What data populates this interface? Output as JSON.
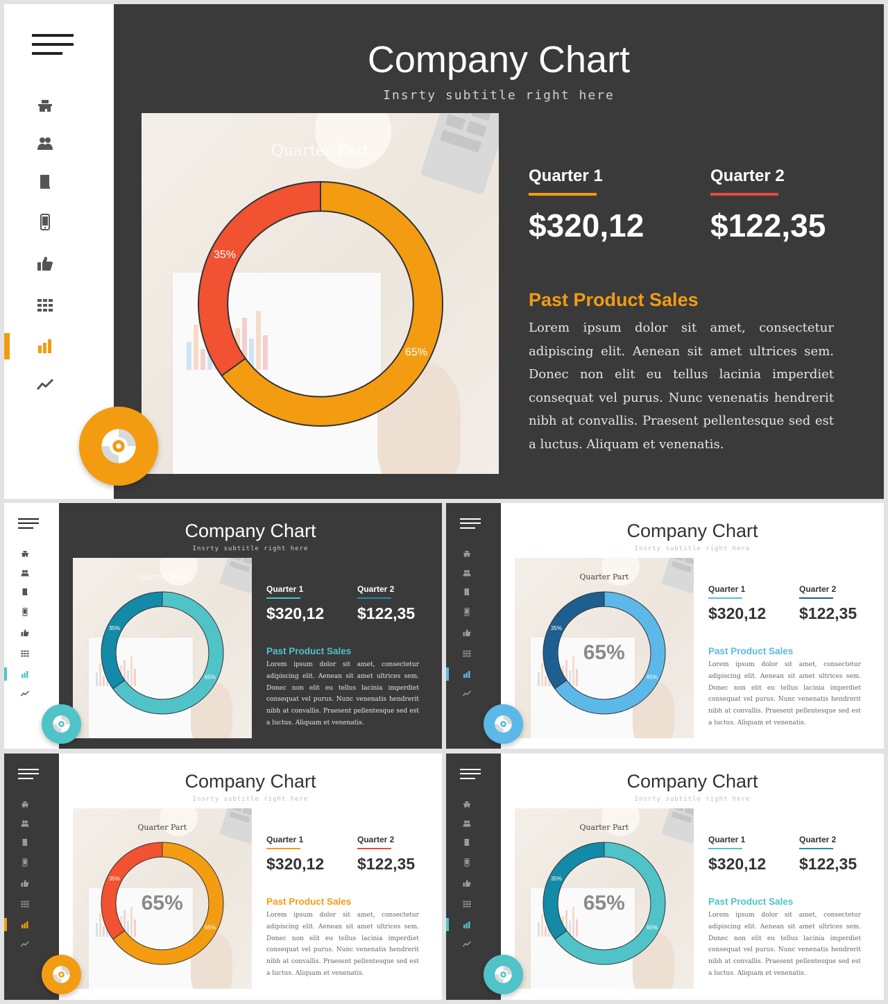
{
  "slides": [
    {
      "id": "big-orange",
      "theme": "dark",
      "accent": "#f39c12",
      "title": "Company Chart",
      "subtitle": "Insrty subtitle right here",
      "chart_title": "Quarter Part",
      "center_label": "",
      "q1": {
        "label": "Quarter 1",
        "value": "$320,12",
        "underline": "#f39c12"
      },
      "q2": {
        "label": "Quarter 2",
        "value": "$122,35",
        "underline": "#e74c3c"
      },
      "section_title": "Past Product Sales",
      "body": "Lorem ipsum dolor sit amet, consectetur adipiscing elit. Aenean sit amet ultrices sem. Donec non elit eu tellus lacinia imperdiet consequat vel purus. Nunc venenatis hendrerit nibh at convallis. Praesent pellentesque sed est a luctus. Aliquam et venenatis.",
      "chart_data": {
        "type": "pie",
        "labels": [
          "35%",
          "65%"
        ],
        "values": [
          35,
          65
        ],
        "colors": [
          "#f05232",
          "#f39c12"
        ],
        "title": "Quarter Part"
      }
    },
    {
      "id": "dark-teal",
      "theme": "dark",
      "accent": "#4fc3c8",
      "title": "Company Chart",
      "subtitle": "Insrty subtitle right here",
      "chart_title": "Quarter Part",
      "center_label": "",
      "q1": {
        "label": "Quarter 1",
        "value": "$320,12",
        "underline": "#4fc3c8"
      },
      "q2": {
        "label": "Quarter 2",
        "value": "$122,35",
        "underline": "#1a8fb0"
      },
      "section_title": "Past Product Sales",
      "body": "Lorem ipsum dolor sit amet, consectetur adipiscing elit. Aenean sit amet ultrices sem. Donec non elit eu tellus lacinia imperdiet consequat vel purus. Nunc venenatis hendrerit nibh at convallis. Praesent pellentesque sed est a luctus. Aliquam et venenatis.",
      "chart_data": {
        "type": "pie",
        "labels": [
          "35%",
          "65%"
        ],
        "values": [
          35,
          65
        ],
        "colors": [
          "#138aa8",
          "#4fc3c8"
        ],
        "title": "Quarter Part"
      }
    },
    {
      "id": "light-blue",
      "theme": "light",
      "accent": "#5bb8e8",
      "title": "Company Chart",
      "subtitle": "Insrty subtitle right here",
      "chart_title": "Quarter Part",
      "center_label": "65%",
      "q1": {
        "label": "Quarter 1",
        "value": "$320,12",
        "underline": "#5bb8e8"
      },
      "q2": {
        "label": "Quarter 2",
        "value": "$122,35",
        "underline": "#1e5f91"
      },
      "section_title": "Past Product Sales",
      "body": "Lorem ipsum dolor sit amet, consectetur adipiscing elit. Aenean sit amet ultrices sem. Donec non elit eu tellus lacinia imperdiet consequat vel purus. Nunc venenatis hendrerit nibh at convallis. Praesent pellentesque sed est a luctus. Aliquam et venenatis.",
      "chart_data": {
        "type": "pie",
        "labels": [
          "35%",
          "65%"
        ],
        "values": [
          35,
          65
        ],
        "colors": [
          "#1e5f91",
          "#5bb8e8"
        ],
        "title": "Quarter Part"
      }
    },
    {
      "id": "light-orange",
      "theme": "light",
      "accent": "#f39c12",
      "title": "Company Chart",
      "subtitle": "Insrty subtitle right here",
      "chart_title": "Quarter Part",
      "center_label": "65%",
      "q1": {
        "label": "Quarter 1",
        "value": "$320,12",
        "underline": "#f39c12"
      },
      "q2": {
        "label": "Quarter 2",
        "value": "$122,35",
        "underline": "#e74c3c"
      },
      "section_title": "Past Product Sales",
      "body": "Lorem ipsum dolor sit amet, consectetur adipiscing elit. Aenean sit amet ultrices sem. Donec non elit eu tellus lacinia imperdiet consequat vel purus. Nunc venenatis hendrerit nibh at convallis. Praesent pellentesque sed est a luctus. Aliquam et venenatis.",
      "chart_data": {
        "type": "pie",
        "labels": [
          "35%",
          "65%"
        ],
        "values": [
          35,
          65
        ],
        "colors": [
          "#f05232",
          "#f39c12"
        ],
        "title": "Quarter Part"
      }
    },
    {
      "id": "light-teal",
      "theme": "light",
      "accent": "#4fc3c8",
      "title": "Company Chart",
      "subtitle": "Insrty subtitle right here",
      "chart_title": "Quarter Part",
      "center_label": "65%",
      "q1": {
        "label": "Quarter 1",
        "value": "$320,12",
        "underline": "#4fc3c8"
      },
      "q2": {
        "label": "Quarter 2",
        "value": "$122,35",
        "underline": "#1a8fb0"
      },
      "section_title": "Past Product Sales",
      "body": "Lorem ipsum dolor sit amet, consectetur adipiscing elit. Aenean sit amet ultrices sem. Donec non elit eu tellus lacinia imperdiet consequat vel purus. Nunc venenatis hendrerit nibh at convallis. Praesent pellentesque sed est a luctus. Aliquam et venenatis.",
      "chart_data": {
        "type": "pie",
        "labels": [
          "35%",
          "65%"
        ],
        "values": [
          35,
          65
        ],
        "colors": [
          "#138aa8",
          "#4fc3c8"
        ],
        "title": "Quarter Part"
      }
    }
  ],
  "sidebar_icons": [
    "home-icon",
    "users-icon",
    "book-icon",
    "mobile-icon",
    "thumbs-up-icon",
    "grid-icon",
    "bar-chart-icon",
    "trend-line-icon"
  ],
  "active_icon": "bar-chart-icon",
  "fab_icon": "disc-icon"
}
